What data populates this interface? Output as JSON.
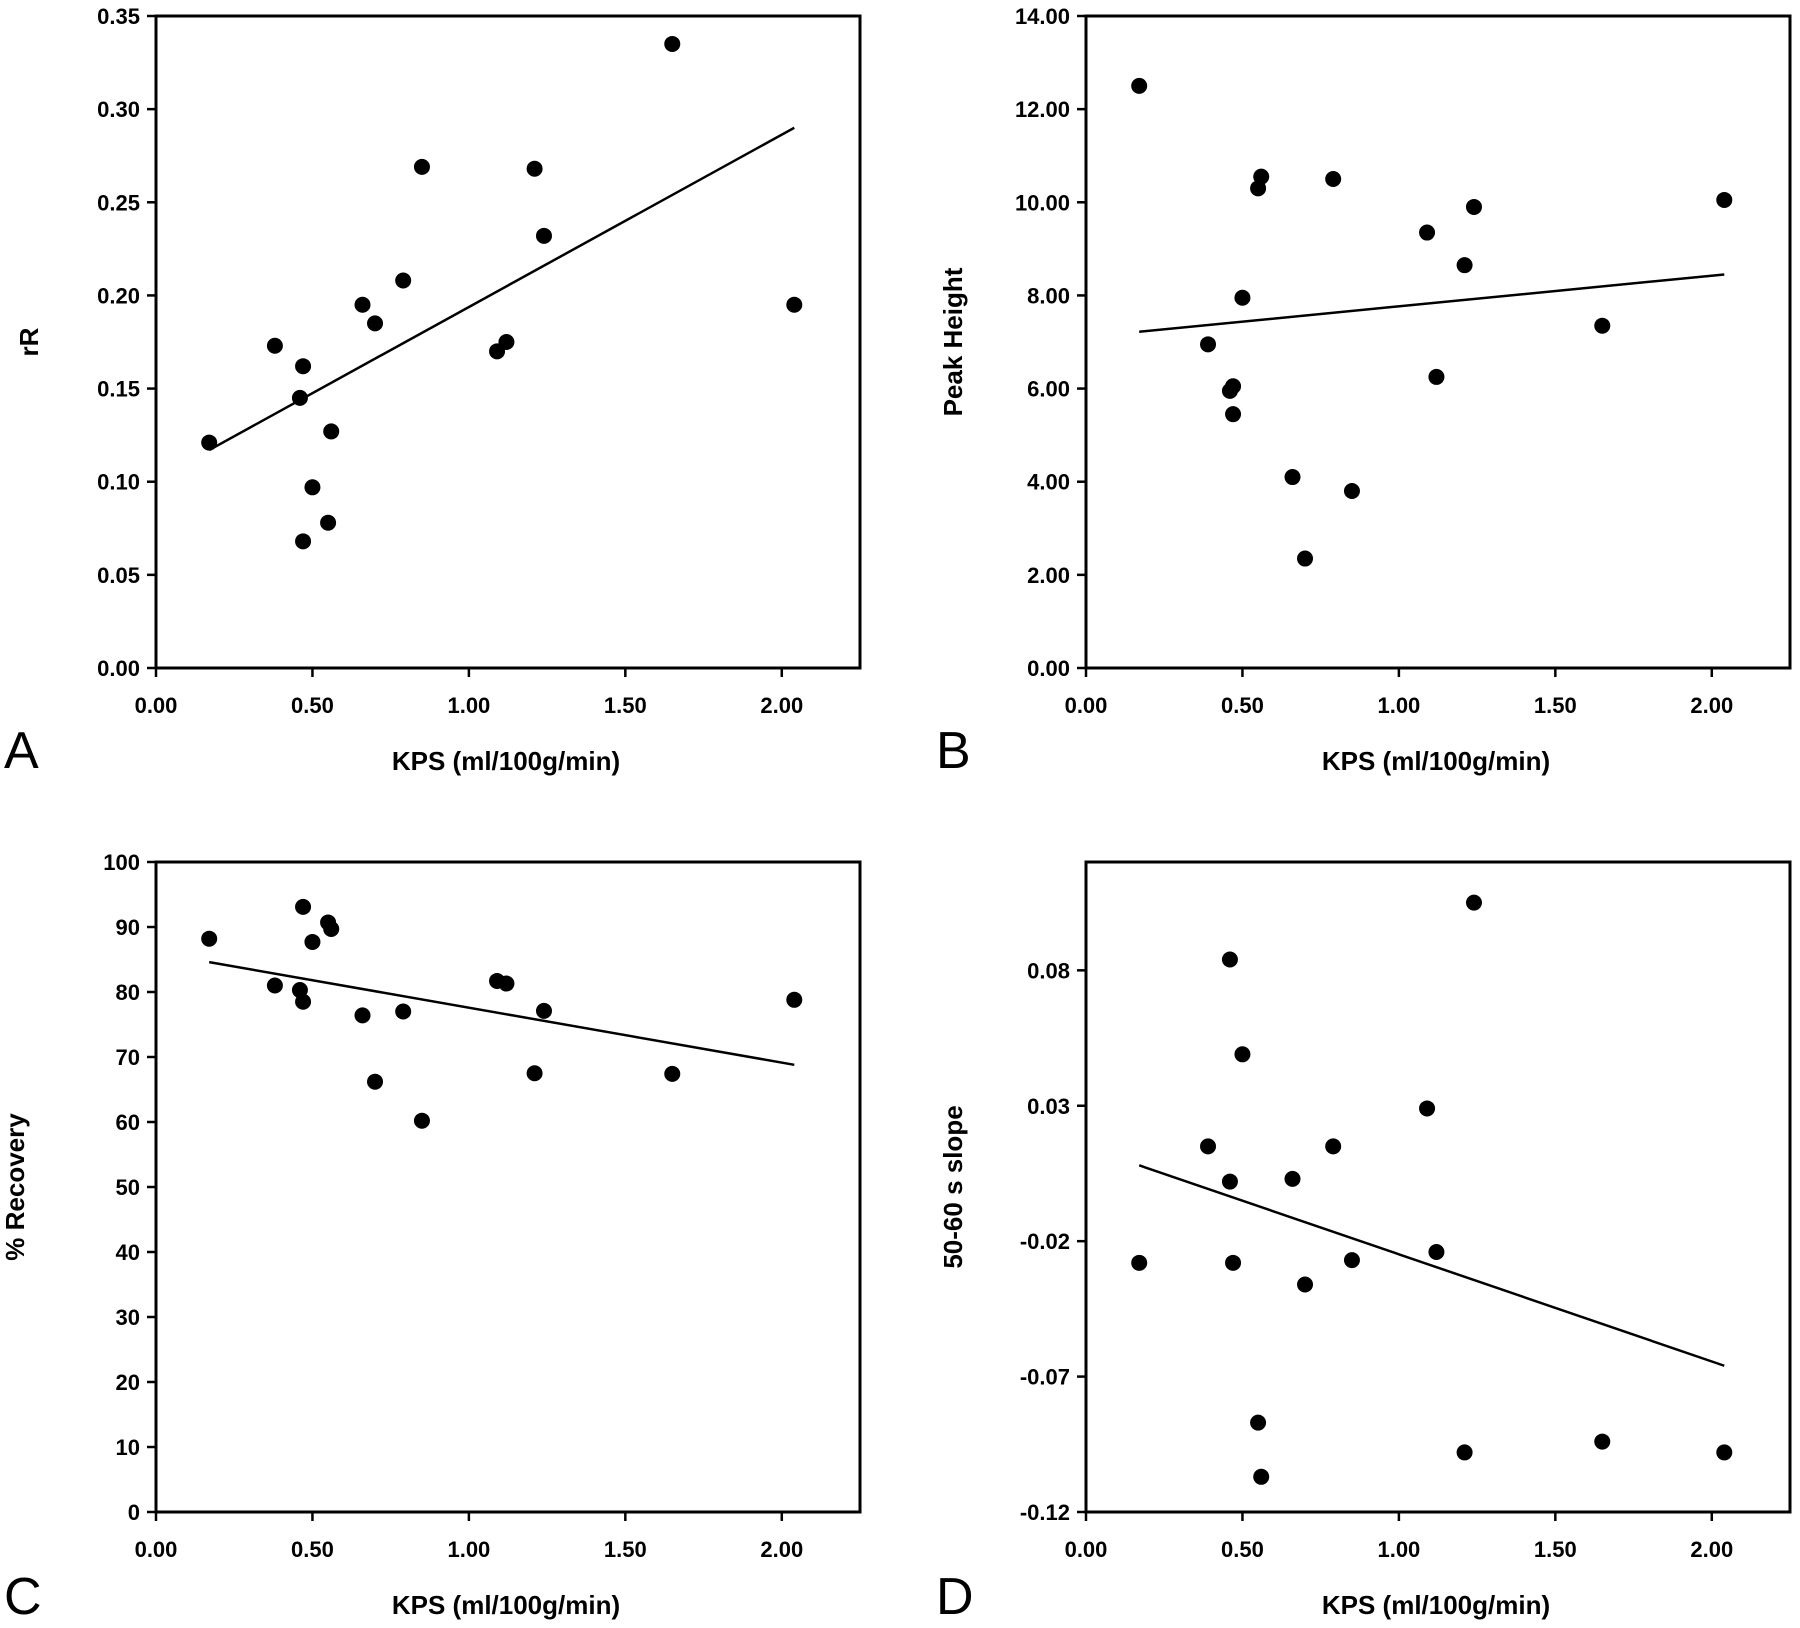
{
  "chart_data": [
    {
      "type": "scatter",
      "panel": "A",
      "xlabel": "KPS (ml/100g/min)",
      "ylabel": "rR",
      "xlim": [
        0,
        2.25
      ],
      "ylim": [
        0,
        0.35
      ],
      "xticks": [
        "0.00",
        "0.50",
        "1.00",
        "1.50",
        "2.00"
      ],
      "xtick_values": [
        0,
        0.5,
        1.0,
        1.5,
        2.0
      ],
      "yticks": [
        "0.00",
        "0.05",
        "0.10",
        "0.15",
        "0.20",
        "0.25",
        "0.30",
        "0.35"
      ],
      "ytick_values": [
        0,
        0.05,
        0.1,
        0.15,
        0.2,
        0.25,
        0.3,
        0.35
      ],
      "points": [
        [
          0.17,
          0.121
        ],
        [
          0.38,
          0.173
        ],
        [
          0.46,
          0.145
        ],
        [
          0.47,
          0.162
        ],
        [
          0.47,
          0.068
        ],
        [
          0.5,
          0.097
        ],
        [
          0.55,
          0.078
        ],
        [
          0.56,
          0.127
        ],
        [
          0.66,
          0.195
        ],
        [
          0.7,
          0.185
        ],
        [
          0.79,
          0.208
        ],
        [
          0.85,
          0.269
        ],
        [
          1.09,
          0.17
        ],
        [
          1.12,
          0.175
        ],
        [
          1.21,
          0.268
        ],
        [
          1.24,
          0.232
        ],
        [
          1.65,
          0.335
        ],
        [
          2.04,
          0.195
        ]
      ],
      "trendline": [
        [
          0.17,
          0.117
        ],
        [
          2.04,
          0.29
        ]
      ]
    },
    {
      "type": "scatter",
      "panel": "B",
      "xlabel": "KPS (ml/100g/min)",
      "ylabel": "Peak Height",
      "xlim": [
        0,
        2.25
      ],
      "ylim": [
        0,
        14
      ],
      "xticks": [
        "0.00",
        "0.50",
        "1.00",
        "1.50",
        "2.00"
      ],
      "xtick_values": [
        0,
        0.5,
        1.0,
        1.5,
        2.0
      ],
      "yticks": [
        "0.00",
        "2.00",
        "4.00",
        "6.00",
        "8.00",
        "10.00",
        "12.00",
        "14.00"
      ],
      "ytick_values": [
        0,
        2,
        4,
        6,
        8,
        10,
        12,
        14
      ],
      "points": [
        [
          0.17,
          12.5
        ],
        [
          0.39,
          6.95
        ],
        [
          0.46,
          5.95
        ],
        [
          0.47,
          6.05
        ],
        [
          0.47,
          5.45
        ],
        [
          0.5,
          7.95
        ],
        [
          0.55,
          10.3
        ],
        [
          0.56,
          10.55
        ],
        [
          0.66,
          4.1
        ],
        [
          0.7,
          2.35
        ],
        [
          0.79,
          10.5
        ],
        [
          0.85,
          3.8
        ],
        [
          1.09,
          9.35
        ],
        [
          1.12,
          6.25
        ],
        [
          1.21,
          8.65
        ],
        [
          1.24,
          9.9
        ],
        [
          1.65,
          7.35
        ],
        [
          2.04,
          10.05
        ]
      ],
      "trendline": [
        [
          0.17,
          7.22
        ],
        [
          2.04,
          8.45
        ]
      ]
    },
    {
      "type": "scatter",
      "panel": "C",
      "xlabel": "KPS (ml/100g/min)",
      "ylabel": "% Recovery",
      "xlim": [
        0,
        2.25
      ],
      "ylim": [
        0,
        100
      ],
      "xticks": [
        "0.00",
        "0.50",
        "1.00",
        "1.50",
        "2.00"
      ],
      "xtick_values": [
        0,
        0.5,
        1.0,
        1.5,
        2.0
      ],
      "yticks": [
        "0",
        "10",
        "20",
        "30",
        "40",
        "50",
        "60",
        "70",
        "80",
        "90",
        "100"
      ],
      "ytick_values": [
        0,
        10,
        20,
        30,
        40,
        50,
        60,
        70,
        80,
        90,
        100
      ],
      "points": [
        [
          0.17,
          88.2
        ],
        [
          0.38,
          81.0
        ],
        [
          0.46,
          80.3
        ],
        [
          0.47,
          93.1
        ],
        [
          0.47,
          78.5
        ],
        [
          0.5,
          87.7
        ],
        [
          0.55,
          90.7
        ],
        [
          0.56,
          89.7
        ],
        [
          0.66,
          76.4
        ],
        [
          0.7,
          66.2
        ],
        [
          0.79,
          77.0
        ],
        [
          0.85,
          60.2
        ],
        [
          1.09,
          81.7
        ],
        [
          1.12,
          81.3
        ],
        [
          1.21,
          67.5
        ],
        [
          1.24,
          77.1
        ],
        [
          1.65,
          67.4
        ],
        [
          2.04,
          78.8
        ]
      ],
      "trendline": [
        [
          0.17,
          84.6
        ],
        [
          2.04,
          68.8
        ]
      ]
    },
    {
      "type": "scatter",
      "panel": "D",
      "xlabel": "KPS (ml/100g/min)",
      "ylabel": "50-60 s slope",
      "xlim": [
        0,
        2.25
      ],
      "ylim": [
        -0.12,
        0.12
      ],
      "xticks": [
        "0.00",
        "0.50",
        "1.00",
        "1.50",
        "2.00"
      ],
      "xtick_values": [
        0,
        0.5,
        1.0,
        1.5,
        2.0
      ],
      "yticks": [
        "-0.12",
        "-0.07",
        "-0.02",
        "0.03",
        "0.08"
      ],
      "ytick_values": [
        -0.12,
        -0.07,
        -0.02,
        0.03,
        0.08
      ],
      "points": [
        [
          0.17,
          -0.028
        ],
        [
          0.39,
          0.015
        ],
        [
          0.46,
          0.002
        ],
        [
          0.46,
          0.084
        ],
        [
          0.47,
          -0.028
        ],
        [
          0.5,
          0.049
        ],
        [
          0.55,
          -0.087
        ],
        [
          0.56,
          -0.107
        ],
        [
          0.66,
          0.003
        ],
        [
          0.7,
          -0.036
        ],
        [
          0.79,
          0.015
        ],
        [
          0.85,
          -0.027
        ],
        [
          1.09,
          0.029
        ],
        [
          1.12,
          -0.024
        ],
        [
          1.21,
          -0.098
        ],
        [
          1.24,
          0.105
        ],
        [
          1.65,
          -0.094
        ],
        [
          2.04,
          -0.098
        ]
      ],
      "trendline": [
        [
          0.17,
          0.008
        ],
        [
          2.04,
          -0.066
        ]
      ]
    }
  ]
}
